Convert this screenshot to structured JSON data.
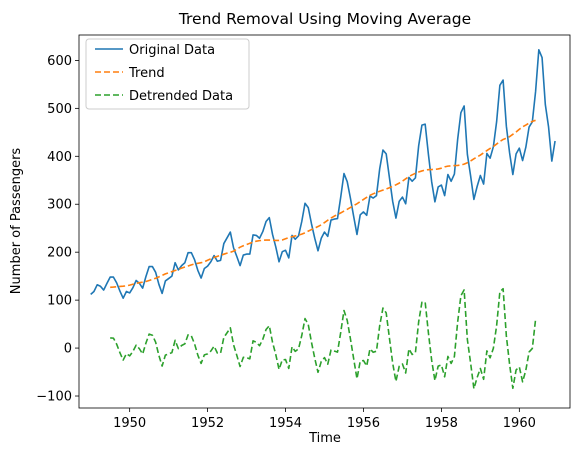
{
  "chart_data": {
    "type": "line",
    "title": "Trend Removal Using Moving Average",
    "xlabel": "Time",
    "ylabel": "Number of Passengers",
    "xlim": [
      1948.7,
      1961.3
    ],
    "ylim": [
      -125,
      653
    ],
    "xticks": [
      1950,
      1952,
      1954,
      1956,
      1958,
      1960
    ],
    "yticks": [
      -100,
      0,
      100,
      200,
      300,
      400,
      500,
      600
    ],
    "grid": false,
    "legend_position": "top-left",
    "x_start": 1949.0,
    "x_step": 0.083333,
    "original": [
      112,
      118,
      132,
      129,
      121,
      135,
      148,
      148,
      136,
      119,
      104,
      118,
      115,
      126,
      141,
      135,
      125,
      149,
      170,
      170,
      158,
      133,
      114,
      140,
      145,
      150,
      178,
      163,
      172,
      178,
      199,
      199,
      184,
      162,
      146,
      166,
      171,
      180,
      193,
      181,
      183,
      218,
      230,
      242,
      209,
      191,
      172,
      194,
      196,
      196,
      236,
      235,
      229,
      243,
      264,
      272,
      237,
      211,
      180,
      201,
      204,
      188,
      235,
      227,
      234,
      264,
      302,
      293,
      259,
      229,
      203,
      229,
      242,
      233,
      267,
      269,
      270,
      315,
      364,
      347,
      312,
      274,
      237,
      278,
      284,
      277,
      317,
      313,
      318,
      374,
      413,
      405,
      355,
      306,
      271,
      306,
      315,
      301,
      356,
      348,
      355,
      422,
      465,
      467,
      404,
      347,
      305,
      336,
      340,
      318,
      362,
      348,
      363,
      435,
      491,
      505,
      404,
      359,
      310,
      337,
      360,
      342,
      406,
      396,
      420,
      472,
      548,
      559,
      463,
      407,
      362,
      405,
      417,
      391,
      419,
      461,
      472,
      535,
      622,
      606,
      508,
      461,
      390,
      432
    ],
    "series": [
      {
        "name": "Original Data",
        "color": "#1f77b4",
        "dash": "solid",
        "key": "original"
      },
      {
        "name": "Trend",
        "color": "#ff7f0e",
        "dash": "dashed",
        "key": "trend"
      },
      {
        "name": "Detrended Data",
        "color": "#2ca02c",
        "dash": "dashed",
        "key": "detrended"
      }
    ]
  }
}
